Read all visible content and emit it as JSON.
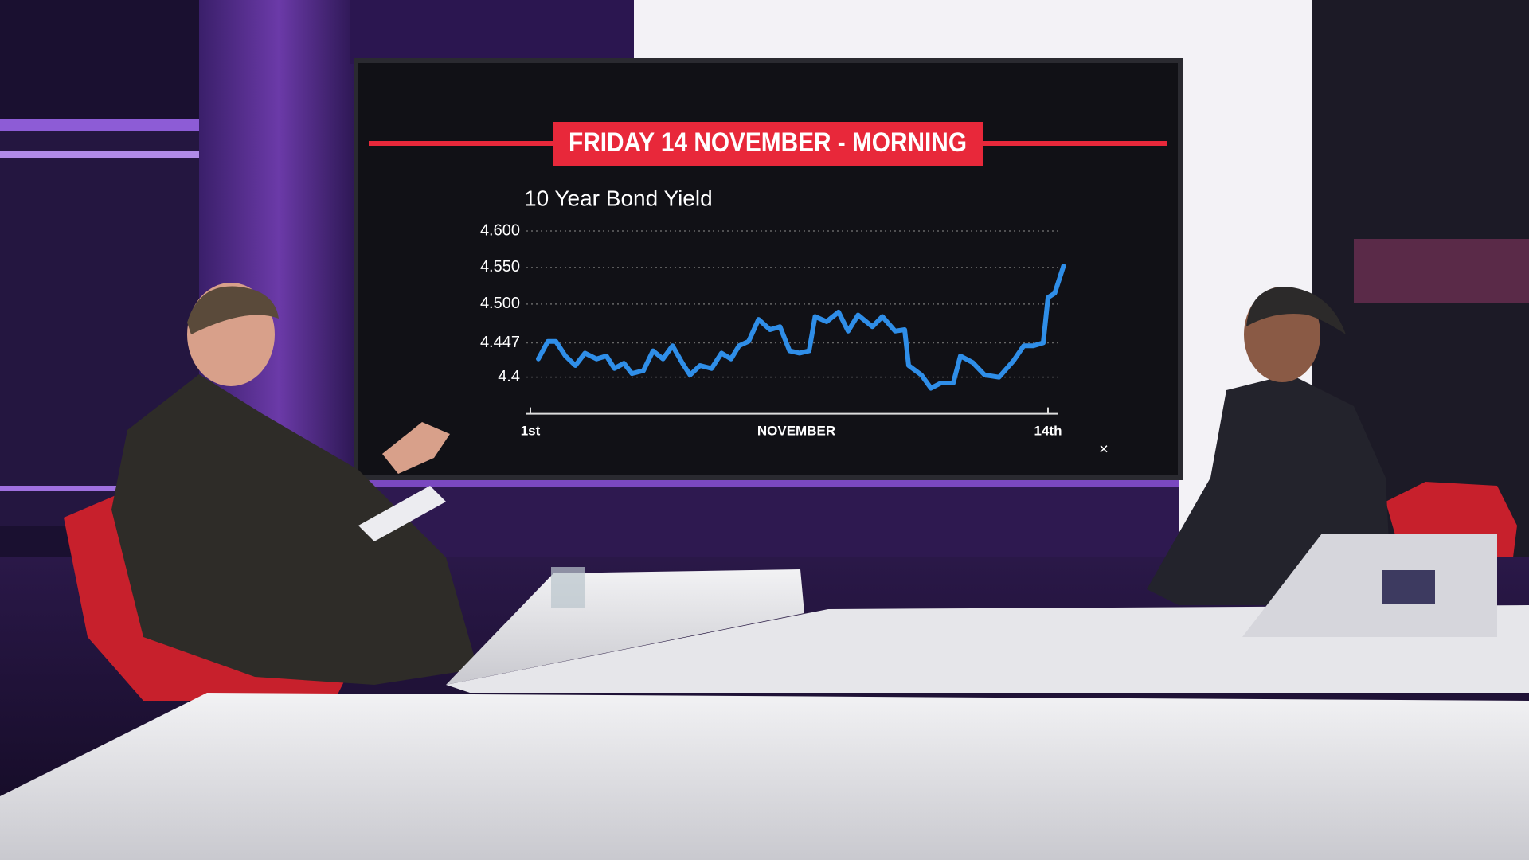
{
  "chart_data": {
    "type": "line",
    "title": "FRIDAY 14 NOVEMBER - MORNING",
    "subtitle": "10 Year Bond Yield",
    "x_label": "NOVEMBER",
    "series": [
      {
        "color": "#2f8ee8",
        "x": [
          1.2,
          1.44,
          1.64,
          1.88,
          2.13,
          2.37,
          2.66,
          2.91,
          3.11,
          3.35,
          3.55,
          3.84,
          4.08,
          4.33,
          4.57,
          4.82,
          5.01,
          5.26,
          5.55,
          5.8,
          6.04,
          6.24,
          6.48,
          6.73,
          7.02,
          7.27,
          7.51,
          7.76,
          8.0,
          8.15,
          8.44,
          8.74,
          8.98,
          9.23,
          9.59,
          9.84,
          10.16,
          10.4,
          10.5,
          10.82,
          11.06,
          11.31,
          11.62,
          11.8,
          12.11,
          12.41,
          12.77,
          13.14,
          13.39,
          13.63,
          13.88,
          14.0,
          14.17,
          14.39
        ],
        "values": [
          4.425,
          4.449,
          4.449,
          4.429,
          4.416,
          4.433,
          4.425,
          4.429,
          4.412,
          4.419,
          4.405,
          4.409,
          4.436,
          4.425,
          4.443,
          4.419,
          4.403,
          4.416,
          4.412,
          4.433,
          4.425,
          4.443,
          4.449,
          4.479,
          4.465,
          4.469,
          4.436,
          4.433,
          4.436,
          4.483,
          4.476,
          4.489,
          4.463,
          4.485,
          4.469,
          4.483,
          4.463,
          4.465,
          4.416,
          4.403,
          4.385,
          4.392,
          4.392,
          4.429,
          4.42,
          4.403,
          4.4,
          4.423,
          4.443,
          4.443,
          4.447,
          4.509,
          4.515,
          4.552
        ]
      }
    ],
    "xlim": [
      1,
      14
    ],
    "xticks": [
      {
        "value": 1,
        "label": "1st"
      },
      {
        "value": 14,
        "label": "14th"
      }
    ],
    "ylim": [
      4.35,
      4.6
    ],
    "yticks": [
      {
        "value": 4.6,
        "label": "4.600"
      },
      {
        "value": 4.55,
        "label": "4.550"
      },
      {
        "value": 4.5,
        "label": "4.500"
      },
      4.447,
      4.4
    ],
    "grid": true,
    "close_icon": "×"
  }
}
